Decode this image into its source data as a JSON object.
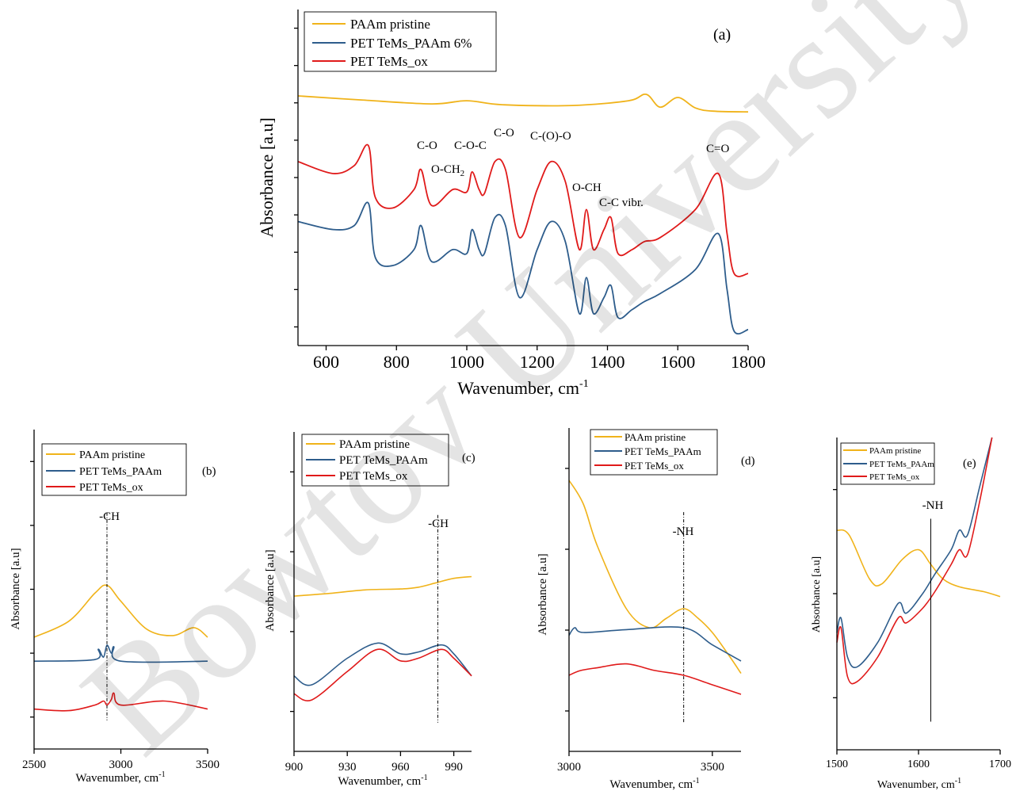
{
  "colors": {
    "paam": "#f0b31a",
    "paam_petms": "#2e5d8c",
    "ox": "#e01a1a",
    "axis": "#000000"
  },
  "watermark": "Bowtov University",
  "chart_data": [
    {
      "id": "a",
      "type": "line",
      "panel_label": "(a)",
      "xlabel": "Wavenumber, cm",
      "xlabel_sup": "-1",
      "ylabel": "Absorbance [a.u]",
      "xlim": [
        520,
        1800
      ],
      "ylim": [
        0,
        4.2
      ],
      "xticks": [
        600,
        800,
        1000,
        1200,
        1400,
        1600,
        1800
      ],
      "yticks_count": 9,
      "tick_labels": [
        "600",
        "800",
        "1000",
        "1200",
        "1400",
        "1600",
        "1800"
      ],
      "legend": [
        "PAAm pristine",
        "PET TeMs_PAAm 6%",
        "PET TeMs_ox"
      ],
      "series": [
        {
          "name": "PAAm pristine",
          "color_key": "paam",
          "x": [
            520,
            700,
            900,
            1000,
            1100,
            1300,
            1460,
            1510,
            1550,
            1600,
            1650,
            1700,
            1800
          ],
          "y": [
            3.12,
            3.07,
            3.02,
            3.06,
            3.01,
            3.0,
            3.06,
            3.14,
            2.98,
            3.1,
            2.97,
            2.93,
            2.92
          ]
        },
        {
          "name": "PET TeMs_PAAm 6%",
          "color_key": "paam_petms",
          "x": [
            520,
            620,
            680,
            720,
            740,
            790,
            850,
            870,
            900,
            960,
            1000,
            1015,
            1035,
            1050,
            1080,
            1110,
            1150,
            1200,
            1240,
            1280,
            1320,
            1340,
            1360,
            1390,
            1410,
            1430,
            1470,
            1505,
            1550,
            1650,
            1715,
            1740,
            1760,
            1800
          ],
          "y": [
            1.55,
            1.45,
            1.5,
            1.78,
            1.1,
            1.0,
            1.2,
            1.5,
            1.05,
            1.2,
            1.15,
            1.45,
            1.2,
            1.15,
            1.6,
            1.5,
            0.6,
            1.2,
            1.55,
            1.3,
            0.4,
            0.85,
            0.4,
            0.6,
            0.75,
            0.35,
            0.45,
            0.55,
            0.65,
            0.95,
            1.4,
            0.7,
            0.18,
            0.2
          ]
        },
        {
          "name": "PET TeMs_ox",
          "color_key": "ox",
          "x": [
            520,
            620,
            680,
            720,
            740,
            790,
            850,
            870,
            900,
            960,
            1000,
            1015,
            1035,
            1050,
            1080,
            1110,
            1150,
            1200,
            1240,
            1280,
            1320,
            1340,
            1360,
            1390,
            1410,
            1430,
            1470,
            1505,
            1550,
            1650,
            1715,
            1740,
            1760,
            1800
          ],
          "y": [
            2.3,
            2.15,
            2.25,
            2.5,
            1.85,
            1.72,
            1.95,
            2.2,
            1.75,
            1.95,
            1.92,
            2.17,
            1.95,
            1.9,
            2.3,
            2.2,
            1.35,
            1.95,
            2.3,
            2.05,
            1.2,
            1.7,
            1.2,
            1.45,
            1.6,
            1.15,
            1.2,
            1.3,
            1.35,
            1.7,
            2.15,
            1.4,
            0.9,
            0.9
          ]
        }
      ],
      "annotations": [
        "C-O",
        "O-CH",
        "C-O-C",
        "C-O",
        "C-(O)-O",
        "O-CH",
        "C-C vibr.",
        "C=O"
      ],
      "annotation_sub": "2"
    },
    {
      "id": "b",
      "type": "line",
      "panel_label": "(b)",
      "xlabel": "Wavenumber, cm",
      "xlabel_sup": "-1",
      "ylabel": "Absorbance [a.u]",
      "xlim": [
        2500,
        3500
      ],
      "ylim": [
        0,
        4
      ],
      "xticks": [
        2500,
        3000,
        3500
      ],
      "yticks_count": 5,
      "tick_labels": [
        "2500",
        "3000",
        "3500"
      ],
      "legend": [
        "PAAm pristine",
        "PET TeMs_PAAm",
        "PET TeMs_ox"
      ],
      "guide_x": 2920,
      "guide_label": "-CH",
      "series": [
        {
          "name": "PAAm pristine",
          "color_key": "paam",
          "x": [
            2500,
            2700,
            2850,
            2920,
            3000,
            3150,
            3300,
            3420,
            3500
          ],
          "y": [
            1.4,
            1.6,
            1.95,
            2.05,
            1.85,
            1.5,
            1.42,
            1.52,
            1.4
          ]
        },
        {
          "name": "PET TeMs_PAAm",
          "color_key": "paam_petms",
          "x": [
            2500,
            2850,
            2870,
            2900,
            2920,
            2945,
            2960,
            3000,
            3500
          ],
          "y": [
            1.1,
            1.12,
            1.25,
            1.15,
            1.3,
            1.2,
            1.28,
            1.1,
            1.1
          ]
        },
        {
          "name": "PET TeMs_ox",
          "color_key": "ox",
          "x": [
            2500,
            2700,
            2850,
            2900,
            2920,
            2945,
            2960,
            3000,
            3250,
            3500
          ],
          "y": [
            0.5,
            0.48,
            0.55,
            0.6,
            0.55,
            0.62,
            0.7,
            0.55,
            0.6,
            0.5
          ]
        }
      ]
    },
    {
      "id": "c",
      "type": "line",
      "panel_label": "(c)",
      "xlabel": "Wavenumber, cm",
      "xlabel_sup": "-1",
      "ylabel": "Absorbance [a.u]",
      "xlim": [
        900,
        1000
      ],
      "ylim": [
        0,
        3.6
      ],
      "xticks": [
        900,
        930,
        960,
        990
      ],
      "yticks_count": 4,
      "tick_labels": [
        "900",
        "930",
        "960",
        "990"
      ],
      "legend": [
        "PAAm pristine",
        "PET TeMs_PAAm",
        "PET TeMs_ox"
      ],
      "guide_x": 981,
      "guide_label": "-CH",
      "series": [
        {
          "name": "PAAm pristine",
          "color_key": "paam",
          "x": [
            900,
            920,
            940,
            960,
            970,
            980,
            990,
            1000
          ],
          "y": [
            1.75,
            1.78,
            1.82,
            1.83,
            1.85,
            1.9,
            1.95,
            1.97
          ]
        },
        {
          "name": "PET TeMs_PAAm",
          "color_key": "paam_petms",
          "x": [
            900,
            910,
            930,
            947,
            960,
            970,
            983,
            990,
            1000
          ],
          "y": [
            0.85,
            0.75,
            1.05,
            1.22,
            1.1,
            1.12,
            1.2,
            1.1,
            0.85
          ]
        },
        {
          "name": "PET TeMs_ox",
          "color_key": "ox",
          "x": [
            900,
            910,
            930,
            947,
            960,
            970,
            983,
            990,
            1000
          ],
          "y": [
            0.65,
            0.58,
            0.9,
            1.15,
            1.02,
            1.05,
            1.15,
            1.05,
            0.85
          ]
        }
      ]
    },
    {
      "id": "d",
      "type": "line",
      "panel_label": "(d)",
      "xlabel": "Wavenumber, cm",
      "xlabel_sup": "-1",
      "ylabel": "Absorbance [a.u]",
      "xlim": [
        3000,
        3600
      ],
      "ylim": [
        0,
        3.4
      ],
      "xticks": [
        3000,
        3500
      ],
      "yticks_count": 4,
      "tick_labels": [
        "3000",
        "3500"
      ],
      "legend": [
        "PAAm pristine",
        "PET TeMs_PAAm",
        "PET TeMs_ox"
      ],
      "guide_x": 3400,
      "guide_label": "-NH",
      "series": [
        {
          "name": "PAAm pristine",
          "color_key": "paam",
          "x": [
            3000,
            3050,
            3100,
            3200,
            3280,
            3340,
            3400,
            3450,
            3500,
            3560,
            3600
          ],
          "y": [
            2.85,
            2.6,
            2.15,
            1.5,
            1.3,
            1.4,
            1.5,
            1.4,
            1.25,
            1.0,
            0.82
          ]
        },
        {
          "name": "PET TeMs_PAAm",
          "color_key": "paam_petms",
          "x": [
            3000,
            3020,
            3050,
            3200,
            3400,
            3500,
            3600
          ],
          "y": [
            1.22,
            1.3,
            1.25,
            1.28,
            1.3,
            1.12,
            0.95
          ]
        },
        {
          "name": "PET TeMs_ox",
          "color_key": "ox",
          "x": [
            3000,
            3040,
            3100,
            3200,
            3300,
            3400,
            3500,
            3600
          ],
          "y": [
            0.8,
            0.85,
            0.88,
            0.92,
            0.85,
            0.8,
            0.7,
            0.6
          ]
        }
      ]
    },
    {
      "id": "e",
      "type": "line",
      "panel_label": "(e)",
      "xlabel": "Wavenumber, cm",
      "xlabel_sup": "-1",
      "ylabel": "Absorbance [a.u]",
      "xlim": [
        1500,
        1700
      ],
      "ylim": [
        0,
        3.2
      ],
      "xticks": [
        1500,
        1600,
        1700
      ],
      "yticks_count": 3,
      "tick_labels": [
        "1500",
        "1600",
        "1700"
      ],
      "legend": [
        "PAAm pristine",
        "PET TeMs_PAAm",
        "PET TeMs_ox"
      ],
      "guide_x": 1615,
      "guide_label": "-NH",
      "series": [
        {
          "name": "PAAm pristine",
          "color_key": "paam",
          "x": [
            1500,
            1515,
            1540,
            1555,
            1580,
            1600,
            1615,
            1630,
            1650,
            1680,
            1700
          ],
          "y": [
            2.25,
            2.2,
            1.75,
            1.7,
            1.95,
            2.05,
            1.9,
            1.75,
            1.67,
            1.62,
            1.57
          ]
        },
        {
          "name": "PET TeMs_PAAm",
          "color_key": "paam_petms",
          "x": [
            1500,
            1505,
            1513,
            1525,
            1550,
            1575,
            1585,
            1605,
            1620,
            1640,
            1650,
            1660,
            1675,
            1690
          ],
          "y": [
            1.2,
            1.35,
            0.95,
            0.85,
            1.1,
            1.5,
            1.4,
            1.6,
            1.8,
            2.05,
            2.25,
            2.2,
            2.7,
            3.2
          ]
        },
        {
          "name": "PET TeMs_ox",
          "color_key": "ox",
          "x": [
            1500,
            1505,
            1513,
            1525,
            1550,
            1575,
            1585,
            1605,
            1620,
            1640,
            1650,
            1660,
            1675,
            1690
          ],
          "y": [
            1.1,
            1.25,
            0.75,
            0.7,
            0.95,
            1.35,
            1.3,
            1.45,
            1.62,
            1.9,
            2.05,
            2.0,
            2.55,
            3.2
          ]
        }
      ]
    }
  ]
}
